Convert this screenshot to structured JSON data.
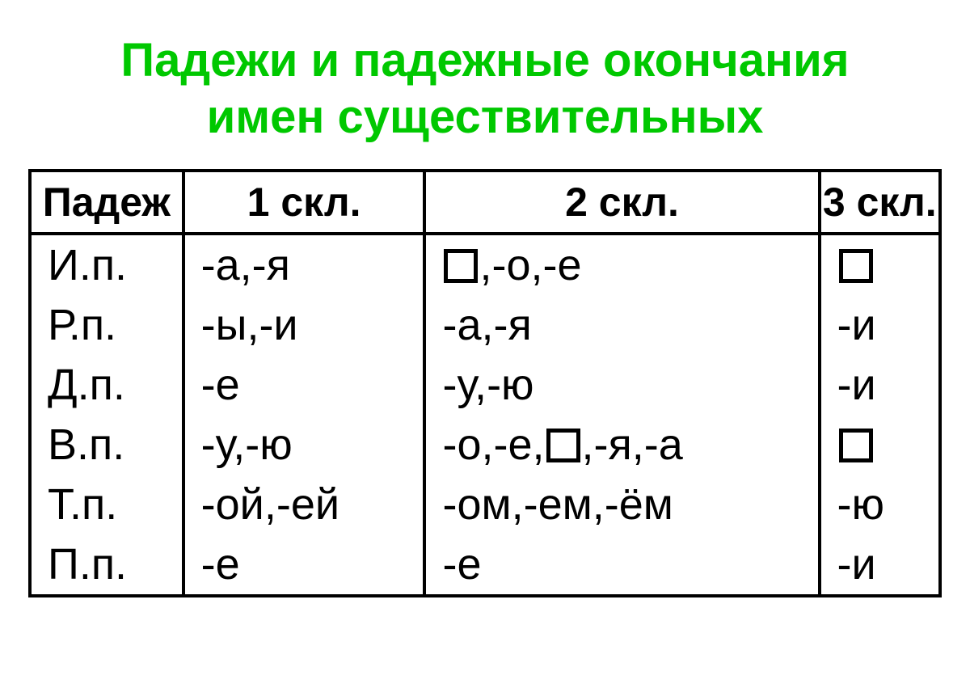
{
  "title_line1": "Падежи и падежные окончания",
  "title_line2": "имен существительных",
  "headers": {
    "c0": "Падеж",
    "c1": "1 скл.",
    "c2": "2 скл.",
    "c3": "3 скл."
  },
  "rows": [
    {
      "case": "И.п.",
      "d1": [
        {
          "t": "-а,-я"
        }
      ],
      "d2": [
        {
          "box": true
        },
        {
          "t": ",-о,-е"
        }
      ],
      "d3": [
        {
          "box": true
        }
      ]
    },
    {
      "case": "Р.п.",
      "d1": [
        {
          "t": "-ы,-и"
        }
      ],
      "d2": [
        {
          "t": " -а,-я"
        }
      ],
      "d3": [
        {
          "t": " -и"
        }
      ]
    },
    {
      "case": "Д.п.",
      "d1": [
        {
          "t": "-е"
        }
      ],
      "d2": [
        {
          "t": " -у,-ю"
        }
      ],
      "d3": [
        {
          "t": " -и"
        }
      ]
    },
    {
      "case": "В.п.",
      "d1": [
        {
          "t": "-у,-ю"
        }
      ],
      "d2": [
        {
          "t": " -о,-е,"
        },
        {
          "box": true
        },
        {
          "t": ",-я,-а"
        }
      ],
      "d3": [
        {
          "box": true
        }
      ]
    },
    {
      "case": "Т.п.",
      "d1": [
        {
          "t": "-ой,-ей"
        }
      ],
      "d2": [
        {
          "t": " -ом,-ем,-ём"
        }
      ],
      "d3": [
        {
          "t": " -ю"
        }
      ]
    },
    {
      "case": "П.п.",
      "d1": [
        {
          "t": "-е"
        }
      ],
      "d2": [
        {
          "t": " -е"
        }
      ],
      "d3": [
        {
          "t": " -и"
        }
      ]
    }
  ],
  "colors": {
    "title": "#00c800",
    "text": "#000000",
    "background": "#ffffff",
    "border": "#000000"
  },
  "fonts": {
    "title_size": 58,
    "header_size": 50,
    "cell_size": 54
  }
}
